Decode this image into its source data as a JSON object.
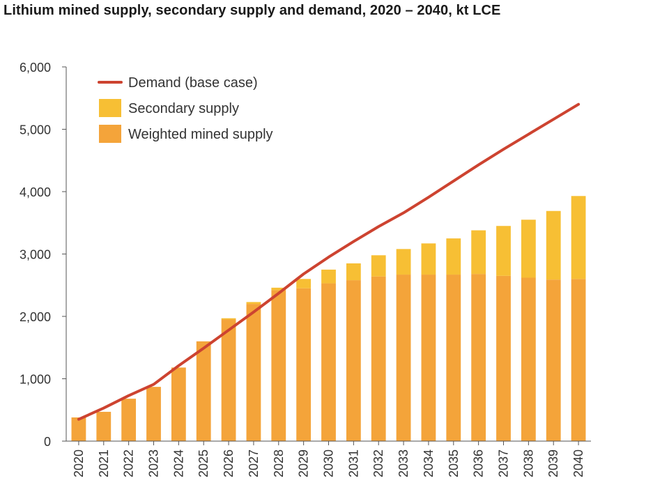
{
  "chart_data": {
    "type": "bar",
    "title": "Lithium mined supply, secondary supply and demand, 2020 – 2040, kt LCE",
    "xlabel": "",
    "ylabel": "",
    "ylim": [
      0,
      6000
    ],
    "yticks": [
      0,
      1000,
      2000,
      3000,
      4000,
      5000,
      6000
    ],
    "ytick_labels": [
      "0",
      "1,000",
      "2,000",
      "3,000",
      "4,000",
      "5,000",
      "6,000"
    ],
    "categories": [
      "2020",
      "2021",
      "2022",
      "2023",
      "2024",
      "2025",
      "2026",
      "2027",
      "2028",
      "2029",
      "2030",
      "2031",
      "2032",
      "2033",
      "2034",
      "2035",
      "2036",
      "2037",
      "2038",
      "2039",
      "2040"
    ],
    "legend_position": "top-left",
    "series": [
      {
        "name": "Weighted mined supply",
        "kind": "stacked-bar",
        "color": "#F4A43A",
        "values": [
          380,
          470,
          680,
          870,
          1180,
          1600,
          1950,
          2200,
          2420,
          2450,
          2530,
          2580,
          2640,
          2670,
          2670,
          2670,
          2680,
          2650,
          2620,
          2590,
          2600
        ]
      },
      {
        "name": "Secondary supply",
        "kind": "stacked-bar",
        "color": "#F7BF34",
        "values": [
          0,
          0,
          0,
          0,
          0,
          0,
          20,
          30,
          40,
          150,
          220,
          270,
          340,
          410,
          500,
          580,
          700,
          800,
          930,
          1100,
          1330
        ]
      },
      {
        "name": "Demand (base case)",
        "kind": "line",
        "color": "#CD4330",
        "values": [
          350,
          530,
          730,
          910,
          1210,
          1490,
          1780,
          2070,
          2370,
          2680,
          2950,
          3200,
          3440,
          3660,
          3910,
          4170,
          4430,
          4680,
          4920,
          5160,
          5400
        ]
      }
    ]
  }
}
